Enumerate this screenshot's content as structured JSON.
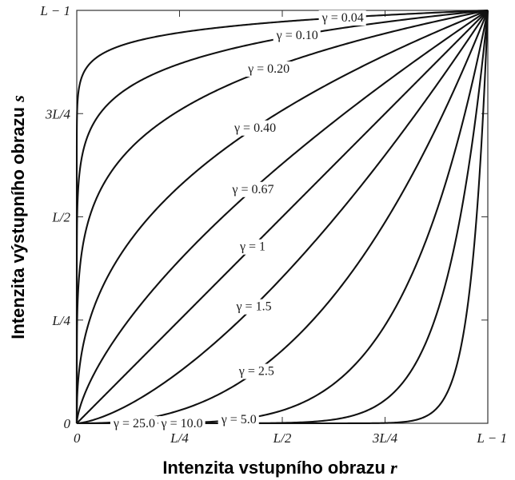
{
  "chart_data": {
    "type": "line",
    "title": "",
    "xlabel": "Intenzita vstupního obrazu",
    "xlabel_var": "r",
    "ylabel": "Intenzita výstupního obrazu",
    "ylabel_var": "s",
    "xlim": [
      0,
      1
    ],
    "ylim": [
      0,
      1
    ],
    "grid": false,
    "x_ticks": [
      {
        "value": 0,
        "label": "0"
      },
      {
        "value": 0.25,
        "label": "L/4"
      },
      {
        "value": 0.5,
        "label": "L/2"
      },
      {
        "value": 0.75,
        "label": "3L/4"
      },
      {
        "value": 1,
        "label": "L − 1"
      }
    ],
    "y_ticks": [
      {
        "value": 0,
        "label": "0"
      },
      {
        "value": 0.25,
        "label": "L/4"
      },
      {
        "value": 0.5,
        "label": "L/2"
      },
      {
        "value": 0.75,
        "label": "3L/4"
      },
      {
        "value": 1,
        "label": "L − 1"
      }
    ],
    "series": [
      {
        "gamma": 0.04,
        "label": "γ = 0.04"
      },
      {
        "gamma": 0.1,
        "label": "γ = 0.10"
      },
      {
        "gamma": 0.2,
        "label": "γ = 0.20"
      },
      {
        "gamma": 0.4,
        "label": "γ = 0.40"
      },
      {
        "gamma": 0.67,
        "label": "γ = 0.67"
      },
      {
        "gamma": 1,
        "label": "γ = 1"
      },
      {
        "gamma": 1.5,
        "label": "γ = 1.5"
      },
      {
        "gamma": 2.5,
        "label": "γ = 2.5"
      },
      {
        "gamma": 5.0,
        "label": "γ = 5.0"
      },
      {
        "gamma": 10.0,
        "label": "γ = 10.0"
      },
      {
        "gamma": 25.0,
        "label": "γ = 25.0"
      }
    ]
  }
}
